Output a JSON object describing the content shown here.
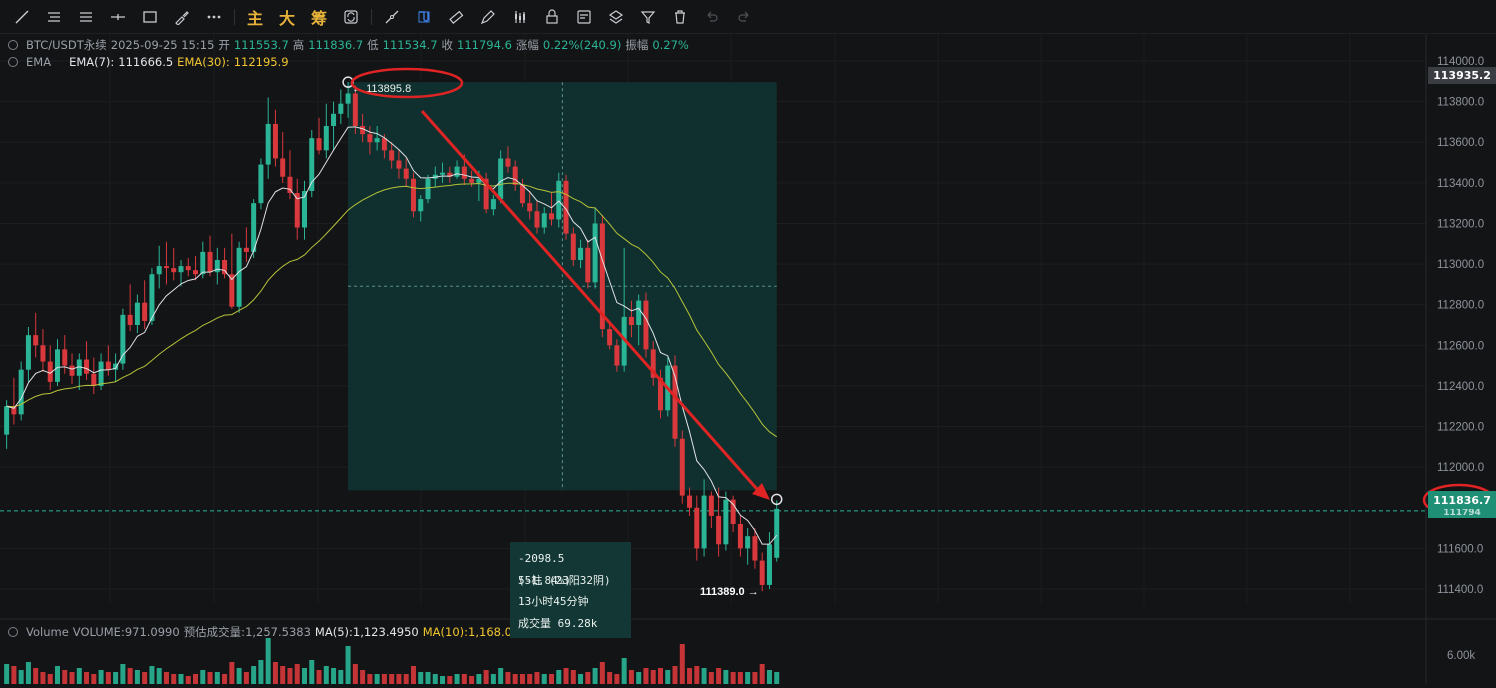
{
  "toolbar": {
    "tools": [
      "trendline-icon",
      "horizontal-lines-icon",
      "parallel-lines-icon",
      "cross-line-icon",
      "rectangle-icon",
      "brush-icon",
      "more-icon"
    ],
    "indicator_labels": [
      "主",
      "大",
      "筹"
    ],
    "tools2": [
      "cycle-icon",
      "measure-icon",
      "magnet-icon",
      "ruler-icon",
      "pencil-icon",
      "candle-settings-icon",
      "lock-icon",
      "note-icon",
      "layers-icon",
      "filter-icon",
      "trash-icon",
      "undo-icon",
      "redo-icon"
    ]
  },
  "header": {
    "symbol": "BTC/USDT永续",
    "datetime": "2025-09-25 15:15",
    "open_label": "开",
    "open": "111553.7",
    "high_label": "高",
    "high": "111836.7",
    "low_label": "低",
    "low": "111534.7",
    "close_label": "收",
    "close": "111794.6",
    "change_label": "涨幅",
    "change": "0.22%(240.9)",
    "amp_label": "振幅",
    "amp": "0.27%"
  },
  "ema_legend": {
    "name": "EMA",
    "ema7_label": "EMA(7):",
    "ema7": "111666.5",
    "ema30_label": "EMA(30):",
    "ema30": "112195.9"
  },
  "volume_legend": {
    "name": "Volume",
    "volume_label": "VOLUME:",
    "volume": "971.0990",
    "est_label": "预估成交量:",
    "est": "1,257.5383",
    "ma5_label": "MA(5):",
    "ma5": "1,123.4950",
    "ma10_label": "MA(10):",
    "ma10": "1,168.0019"
  },
  "measure": {
    "high_marker": "← 113895.8",
    "low_marker": "111389.0 →",
    "delta": "-2098.5 (-1.84%)",
    "bars": "55柱 (23阳32阴)",
    "duration": "13小时45分钟",
    "volume": "成交量 69.28k"
  },
  "price_tags": {
    "top": "113935.2",
    "current": "111836.7",
    "current_sub": "111794"
  },
  "colors": {
    "up": "#2ab596",
    "down": "#d9383c",
    "ema7": "#e0e2e6",
    "ema30": "#b7c23a",
    "annotation": "#e02424",
    "measure_fill": "#0f3532"
  },
  "chart_data": {
    "type": "candlestick",
    "symbol": "BTC/USDT永续",
    "interval_minutes": 15,
    "y_axis_ticks": [
      114000,
      113800,
      113600,
      113400,
      113200,
      113000,
      112800,
      112600,
      112400,
      112200,
      112000,
      111600,
      111400
    ],
    "y_axis_tick_labels": [
      "114000.0",
      "113800.0",
      "113600.0",
      "113400.0",
      "113200.0",
      "113000.0",
      "112800.0",
      "112600.0",
      "112400.0",
      "112200.0",
      "112000.0",
      "111600.0",
      "111400.0"
    ],
    "ylim": [
      111250,
      114130
    ],
    "volume_axis_label": "6.00k",
    "series": [
      {
        "name": "EMA(7)",
        "value": 111666.5
      },
      {
        "name": "EMA(30)",
        "value": 112195.9
      }
    ],
    "candles_ohlc": [
      [
        112160,
        112330,
        112090,
        112300
      ],
      [
        112300,
        112440,
        112210,
        112260
      ],
      [
        112260,
        112520,
        112230,
        112480
      ],
      [
        112480,
        112690,
        112420,
        112650
      ],
      [
        112650,
        112760,
        112540,
        112600
      ],
      [
        112600,
        112680,
        112470,
        112520
      ],
      [
        112520,
        112600,
        112380,
        112420
      ],
      [
        112420,
        112630,
        112400,
        112580
      ],
      [
        112580,
        112650,
        112460,
        112500
      ],
      [
        112500,
        112560,
        112410,
        112450
      ],
      [
        112450,
        112560,
        112380,
        112530
      ],
      [
        112530,
        112620,
        112430,
        112460
      ],
      [
        112460,
        112540,
        112360,
        112400
      ],
      [
        112400,
        112560,
        112380,
        112520
      ],
      [
        112520,
        112600,
        112450,
        112480
      ],
      [
        112480,
        112560,
        112420,
        112510
      ],
      [
        112510,
        112780,
        112480,
        112750
      ],
      [
        112750,
        112900,
        112670,
        112700
      ],
      [
        112700,
        112850,
        112660,
        112810
      ],
      [
        112810,
        112920,
        112680,
        112720
      ],
      [
        112720,
        112980,
        112700,
        112950
      ],
      [
        112950,
        113090,
        112880,
        112990
      ],
      [
        112990,
        113110,
        112900,
        112980
      ],
      [
        112980,
        113080,
        112920,
        112960
      ],
      [
        112960,
        113020,
        112890,
        112990
      ],
      [
        112990,
        113030,
        112940,
        112970
      ],
      [
        112970,
        113040,
        112920,
        112950
      ],
      [
        112950,
        113110,
        112930,
        113060
      ],
      [
        113060,
        113140,
        112940,
        112960
      ],
      [
        112960,
        113080,
        112900,
        113020
      ],
      [
        113020,
        113080,
        112930,
        112950
      ],
      [
        112950,
        113150,
        112780,
        112790
      ],
      [
        112790,
        113110,
        112760,
        113080
      ],
      [
        113080,
        113180,
        113010,
        113060
      ],
      [
        113060,
        113320,
        113030,
        113300
      ],
      [
        113300,
        113520,
        113270,
        113490
      ],
      [
        113490,
        113820,
        113420,
        113690
      ],
      [
        113690,
        113760,
        113480,
        113520
      ],
      [
        113520,
        113650,
        113400,
        113430
      ],
      [
        113430,
        113560,
        113320,
        113350
      ],
      [
        113350,
        113420,
        113120,
        113180
      ],
      [
        113180,
        113410,
        113120,
        113360
      ],
      [
        113360,
        113660,
        113330,
        113620
      ],
      [
        113620,
        113720,
        113540,
        113560
      ],
      [
        113560,
        113790,
        113520,
        113680
      ],
      [
        113680,
        113800,
        113560,
        113740
      ],
      [
        113740,
        113860,
        113690,
        113790
      ],
      [
        113790,
        113896,
        113720,
        113840
      ],
      [
        113840,
        113880,
        113640,
        113680
      ],
      [
        113680,
        113740,
        113600,
        113640
      ],
      [
        113640,
        113680,
        113540,
        113600
      ],
      [
        113600,
        113680,
        113560,
        113620
      ],
      [
        113620,
        113640,
        113520,
        113560
      ],
      [
        113560,
        113600,
        113470,
        113510
      ],
      [
        113510,
        113560,
        113420,
        113470
      ],
      [
        113470,
        113520,
        113380,
        113420
      ],
      [
        113420,
        113450,
        113230,
        113260
      ],
      [
        113260,
        113340,
        113210,
        113320
      ],
      [
        113320,
        113440,
        113300,
        113420
      ],
      [
        113420,
        113480,
        113380,
        113440
      ],
      [
        113440,
        113500,
        113400,
        113450
      ],
      [
        113450,
        113480,
        113400,
        113430
      ],
      [
        113430,
        113510,
        113420,
        113480
      ],
      [
        113480,
        113540,
        113390,
        113420
      ],
      [
        113420,
        113460,
        113380,
        113400
      ],
      [
        113400,
        113460,
        113310,
        113420
      ],
      [
        113420,
        113450,
        113250,
        113270
      ],
      [
        113270,
        113340,
        113240,
        113320
      ],
      [
        113320,
        113560,
        113300,
        113520
      ],
      [
        113520,
        113580,
        113450,
        113480
      ],
      [
        113480,
        113510,
        113360,
        113390
      ],
      [
        113390,
        113420,
        113280,
        113300
      ],
      [
        113300,
        113360,
        113220,
        113260
      ],
      [
        113260,
        113310,
        113150,
        113180
      ],
      [
        113180,
        113280,
        113150,
        113250
      ],
      [
        113250,
        113350,
        113190,
        113220
      ],
      [
        113220,
        113450,
        113180,
        113410
      ],
      [
        113410,
        113440,
        113120,
        113150
      ],
      [
        113150,
        113180,
        112990,
        113020
      ],
      [
        113020,
        113120,
        112980,
        113080
      ],
      [
        113080,
        113120,
        112880,
        112910
      ],
      [
        112910,
        113280,
        112880,
        113200
      ],
      [
        113200,
        113240,
        112640,
        112680
      ],
      [
        112680,
        112720,
        112580,
        112600
      ],
      [
        112600,
        112630,
        112470,
        112500
      ],
      [
        112500,
        113080,
        112470,
        112740
      ],
      [
        112740,
        112820,
        112640,
        112700
      ],
      [
        112700,
        112850,
        112600,
        112820
      ],
      [
        112820,
        112860,
        112540,
        112580
      ],
      [
        112580,
        112620,
        112400,
        112440
      ],
      [
        112440,
        112480,
        112240,
        112280
      ],
      [
        112280,
        112540,
        112250,
        112500
      ],
      [
        112500,
        112550,
        112100,
        112140
      ],
      [
        112140,
        112180,
        111820,
        111860
      ],
      [
        111860,
        111900,
        111760,
        111800
      ],
      [
        111800,
        111860,
        111540,
        111600
      ],
      [
        111600,
        111940,
        111560,
        111860
      ],
      [
        111860,
        111880,
        111700,
        111760
      ],
      [
        111760,
        111900,
        111560,
        111620
      ],
      [
        111620,
        111880,
        111590,
        111840
      ],
      [
        111840,
        111860,
        111680,
        111720
      ],
      [
        111720,
        111760,
        111560,
        111600
      ],
      [
        111600,
        111700,
        111520,
        111660
      ],
      [
        111660,
        111700,
        111500,
        111540
      ],
      [
        111540,
        111580,
        111389,
        111420
      ],
      [
        111420,
        111680,
        111400,
        111620
      ],
      [
        111553.7,
        111836.7,
        111534.7,
        111794.6
      ]
    ]
  }
}
